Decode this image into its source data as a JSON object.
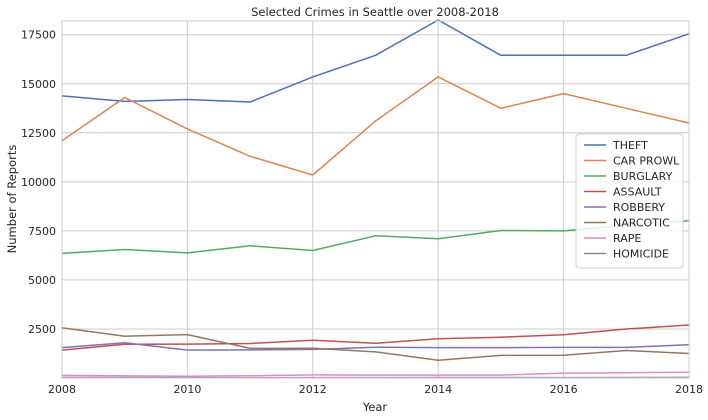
{
  "chart_data": {
    "type": "line",
    "title": "Selected Crimes in Seattle over 2008-2018",
    "xlabel": "Year",
    "ylabel": "Number of Reports",
    "x": [
      2008,
      2009,
      2010,
      2011,
      2012,
      2013,
      2014,
      2015,
      2016,
      2017,
      2018
    ],
    "xticks": [
      2008,
      2010,
      2012,
      2014,
      2016,
      2018
    ],
    "yticks": [
      2500,
      5000,
      7500,
      10000,
      12500,
      15000,
      17500
    ],
    "xlim": [
      2008,
      2018
    ],
    "ylim": [
      0,
      18200
    ],
    "grid": true,
    "legend_position": "center-right",
    "series": [
      {
        "name": "THEFT",
        "color": "#4c72b0",
        "values": [
          14380,
          14100,
          14200,
          14070,
          15350,
          16450,
          18250,
          16450,
          16450,
          16450,
          17550
        ]
      },
      {
        "name": "CAR PROWL",
        "color": "#dd8452",
        "values": [
          12100,
          14300,
          12700,
          11300,
          10350,
          13100,
          15350,
          13750,
          14500,
          13750,
          13000
        ]
      },
      {
        "name": "BURGLARY",
        "color": "#55a868",
        "values": [
          6350,
          6550,
          6380,
          6740,
          6500,
          7250,
          7100,
          7520,
          7500,
          7800,
          8020
        ]
      },
      {
        "name": "ASSAULT",
        "color": "#c44e52",
        "values": [
          1420,
          1720,
          1730,
          1760,
          1920,
          1770,
          2000,
          2080,
          2200,
          2500,
          2700
        ]
      },
      {
        "name": "ROBBERY",
        "color": "#8172b3",
        "values": [
          1550,
          1800,
          1420,
          1430,
          1460,
          1570,
          1550,
          1550,
          1560,
          1560,
          1700
        ]
      },
      {
        "name": "NARCOTIC",
        "color": "#937860",
        "values": [
          2560,
          2130,
          2210,
          1510,
          1520,
          1330,
          900,
          1150,
          1160,
          1400,
          1250
        ]
      },
      {
        "name": "RAPE",
        "color": "#da8bc3",
        "values": [
          130,
          110,
          90,
          110,
          160,
          150,
          150,
          150,
          250,
          270,
          290
        ]
      },
      {
        "name": "HOMICIDE",
        "color": "#8c8c8c",
        "values": [
          25,
          25,
          20,
          15,
          20,
          20,
          25,
          25,
          20,
          25,
          30
        ]
      }
    ]
  }
}
